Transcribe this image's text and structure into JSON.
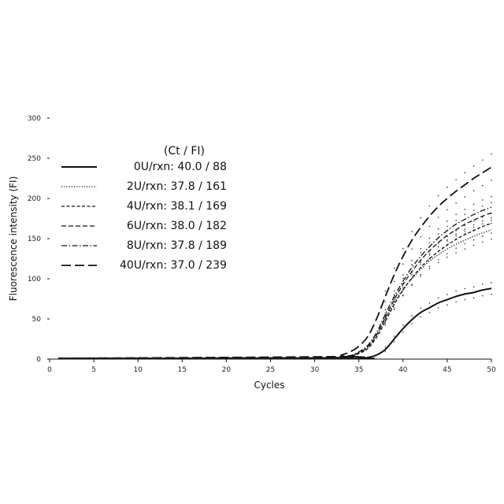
{
  "chart_data": {
    "type": "line",
    "xlabel": "Cycles",
    "ylabel": "Fluorescence intensity (FI)",
    "xlim": [
      0,
      50
    ],
    "ylim": [
      0,
      300
    ],
    "xticks": [
      0,
      5,
      10,
      15,
      20,
      25,
      30,
      35,
      40,
      45,
      50
    ],
    "yticks": [
      0,
      50,
      100,
      150,
      200,
      250,
      300
    ],
    "grid": false,
    "legend_position": "top-left",
    "legend_header": "(Ct / FI)",
    "series": [
      {
        "name": "0U/rxn: 40.0 / 88",
        "dash": "solid",
        "width": 2.0,
        "x": [
          1,
          34,
          35,
          36,
          37,
          38,
          39,
          40,
          41,
          42,
          43,
          44,
          45,
          46,
          47,
          48,
          49,
          50
        ],
        "y": [
          1,
          1,
          1,
          2,
          5,
          12,
          25,
          38,
          49,
          58,
          64,
          70,
          74,
          78,
          81,
          83,
          86,
          88
        ]
      },
      {
        "name": "2U/rxn: 37.8 / 161",
        "dash": "dotted",
        "width": 1.3,
        "x": [
          1,
          33,
          34,
          35,
          36,
          37,
          38,
          39,
          40,
          41,
          42,
          43,
          44,
          45,
          46,
          47,
          48,
          49,
          50
        ],
        "y": [
          1,
          2,
          4,
          8,
          15,
          30,
          50,
          70,
          87,
          100,
          112,
          122,
          130,
          137,
          143,
          148,
          153,
          157,
          161
        ]
      },
      {
        "name": "4U/rxn: 38.1 / 169",
        "dash": "short-dash",
        "width": 1.3,
        "x": [
          1,
          33,
          34,
          35,
          36,
          37,
          38,
          39,
          40,
          41,
          42,
          43,
          44,
          45,
          46,
          47,
          48,
          49,
          50
        ],
        "y": [
          1,
          2,
          3,
          7,
          13,
          27,
          47,
          68,
          86,
          101,
          114,
          125,
          134,
          142,
          149,
          155,
          160,
          165,
          169
        ]
      },
      {
        "name": "6U/rxn: 38.0 / 182",
        "dash": "dash",
        "width": 1.3,
        "x": [
          1,
          33,
          34,
          35,
          36,
          37,
          38,
          39,
          40,
          41,
          42,
          43,
          44,
          45,
          46,
          47,
          48,
          49,
          50
        ],
        "y": [
          1,
          2,
          4,
          8,
          15,
          30,
          52,
          74,
          93,
          109,
          123,
          135,
          145,
          154,
          161,
          168,
          173,
          178,
          182
        ]
      },
      {
        "name": "8U/rxn: 37.8 / 189",
        "dash": "dash-dot",
        "width": 1.3,
        "x": [
          1,
          33,
          34,
          35,
          36,
          37,
          38,
          39,
          40,
          41,
          42,
          43,
          44,
          45,
          46,
          47,
          48,
          49,
          50
        ],
        "y": [
          1,
          2,
          4,
          9,
          17,
          33,
          56,
          78,
          97,
          114,
          128,
          140,
          151,
          160,
          168,
          174,
          180,
          185,
          189
        ]
      },
      {
        "name": "40U/rxn: 37.0 / 239",
        "dash": "long-dash",
        "width": 1.8,
        "x": [
          1,
          32,
          33,
          34,
          35,
          36,
          37,
          38,
          39,
          40,
          41,
          42,
          43,
          44,
          45,
          46,
          47,
          48,
          49,
          50
        ],
        "y": [
          1,
          3,
          5,
          9,
          16,
          28,
          50,
          78,
          105,
          128,
          148,
          164,
          178,
          190,
          200,
          209,
          217,
          225,
          232,
          239
        ]
      }
    ]
  }
}
